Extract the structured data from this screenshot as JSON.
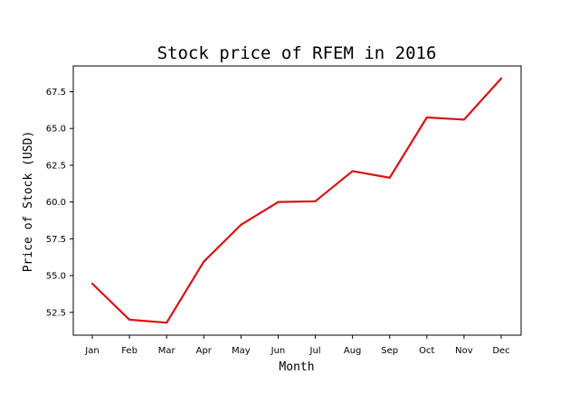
{
  "chart_data": {
    "type": "line",
    "title": "Stock price of RFEM in 2016",
    "xlabel": "Month",
    "ylabel": "Price of Stock (USD)",
    "categories": [
      "Jan",
      "Feb",
      "Mar",
      "Apr",
      "May",
      "Jun",
      "Jul",
      "Aug",
      "Sep",
      "Oct",
      "Nov",
      "Dec"
    ],
    "series": [
      {
        "values": [
          54.45,
          52.0,
          51.8,
          55.95,
          58.45,
          60.0,
          60.05,
          62.1,
          61.65,
          65.75,
          65.6,
          68.4
        ],
        "color": "#dd1111"
      }
    ],
    "ylim": [
      50.95,
      69.25
    ],
    "yticks": [
      52.5,
      55.0,
      57.5,
      60.0,
      62.5,
      65.0,
      67.5
    ],
    "ytick_labels": [
      "52.5",
      "55.0",
      "57.5",
      "60.0",
      "62.5",
      "65.0",
      "67.5"
    ],
    "grid": false,
    "legend": "none"
  }
}
